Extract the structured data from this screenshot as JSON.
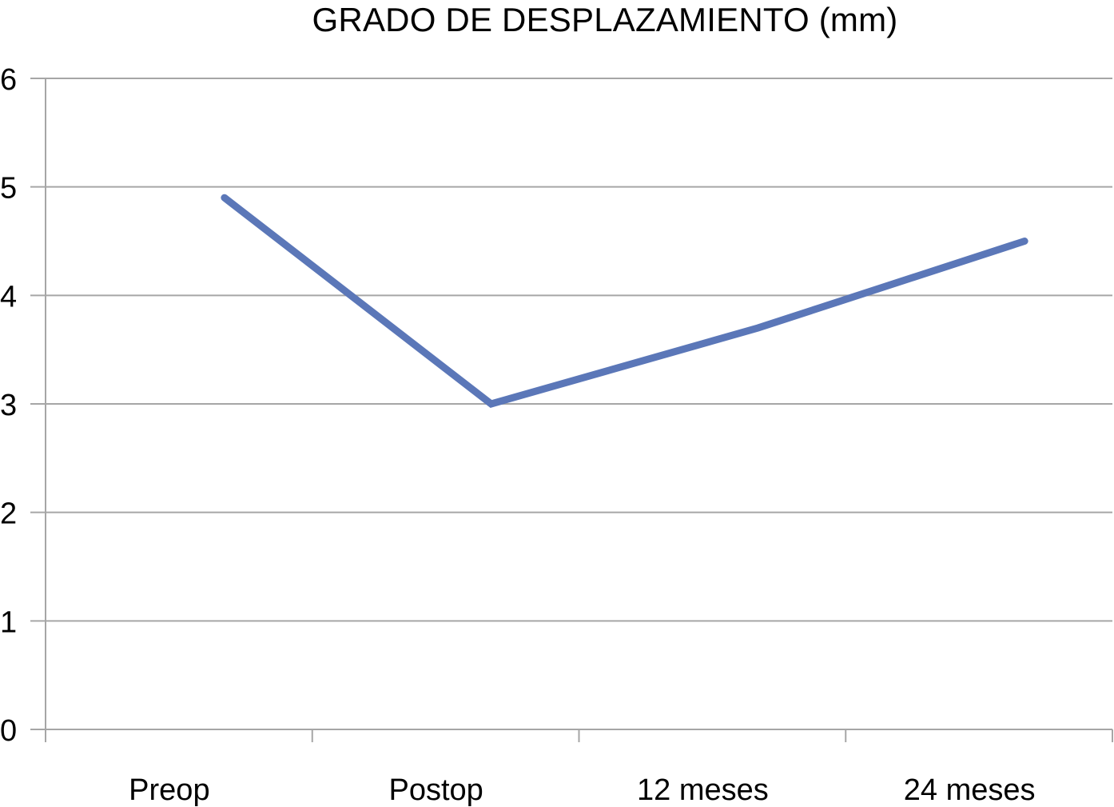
{
  "chart_data": {
    "type": "line",
    "title": "GRADO DE DESPLAZAMIENTO (mm)",
    "categories": [
      "Preop",
      "Postop",
      "12 meses",
      "24 meses"
    ],
    "series": [
      {
        "values": [
          4.9,
          3.0,
          3.7,
          4.5
        ]
      }
    ],
    "ylim": [
      0,
      6
    ],
    "yticks": [
      "0",
      "1",
      "2",
      "3",
      "4",
      "5",
      "6"
    ],
    "grid": true,
    "legend": "none",
    "line_color": "#5b77b8",
    "grid_color": "#a6a6a6"
  }
}
